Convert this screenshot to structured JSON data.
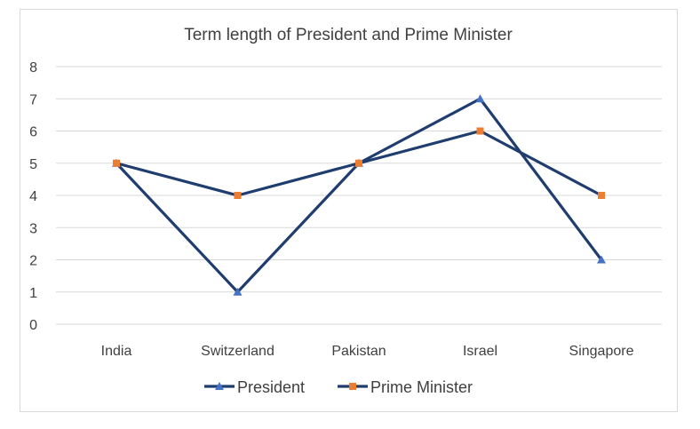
{
  "chart_data": {
    "type": "line",
    "title": "Term length of President and Prime Minister",
    "categories": [
      "India",
      "Switzerland",
      "Pakistan",
      "Israel",
      "Singapore"
    ],
    "series": [
      {
        "name": "President",
        "values": [
          5,
          1,
          5,
          7,
          2
        ],
        "line_color": "#1f3d6e",
        "marker": "triangle",
        "marker_color": "#4472c4"
      },
      {
        "name": "Prime Minister",
        "values": [
          5,
          4,
          5,
          6,
          4
        ],
        "line_color": "#1f3d6e",
        "marker": "square",
        "marker_color": "#ed7d31"
      }
    ],
    "ylim": [
      0,
      8
    ],
    "yticks": [
      0,
      1,
      2,
      3,
      4,
      5,
      6,
      7,
      8
    ],
    "grid": true,
    "legend": "bottom"
  }
}
